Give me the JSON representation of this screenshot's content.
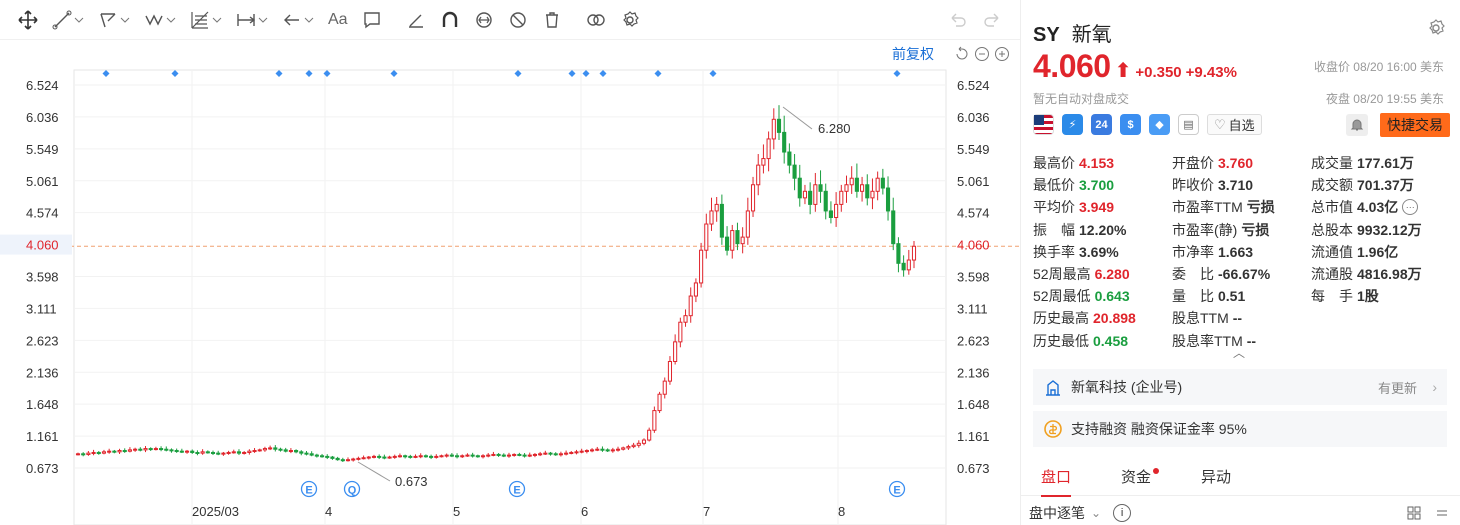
{
  "toolbar": {
    "text_tool": "Aa"
  },
  "chart": {
    "fuquan_label": "前复权",
    "price_axis_left": [
      "6.524",
      "6.036",
      "5.549",
      "5.061",
      "4.574",
      "4.060",
      "3.598",
      "3.111",
      "2.623",
      "2.136",
      "1.648",
      "1.161",
      "0.673"
    ],
    "price_axis_right": [
      "6.524",
      "6.036",
      "5.549",
      "5.061",
      "4.574",
      "4.060",
      "3.598",
      "3.111",
      "2.623",
      "2.136",
      "1.648",
      "1.161",
      "0.673"
    ],
    "current_price": "4.060",
    "x_labels": [
      "2025/03",
      "4",
      "5",
      "6",
      "7",
      "8"
    ],
    "high_marker": "6.280",
    "low_marker": "0.673",
    "event_badges": [
      "E",
      "Q",
      "E",
      "E"
    ]
  },
  "chart_data": {
    "type": "candlestick",
    "ymin": 0.673,
    "ymax": 6.524,
    "current": 4.06,
    "high_label": 6.28,
    "low_label": 0.673,
    "x_ticks": [
      "2025/03",
      "4",
      "5",
      "6",
      "7",
      "8"
    ],
    "closes": [
      0.89,
      0.88,
      0.9,
      0.91,
      0.9,
      0.92,
      0.93,
      0.92,
      0.94,
      0.93,
      0.95,
      0.96,
      0.95,
      0.97,
      0.96,
      0.97,
      0.96,
      0.95,
      0.94,
      0.93,
      0.92,
      0.93,
      0.91,
      0.9,
      0.92,
      0.91,
      0.9,
      0.89,
      0.9,
      0.91,
      0.92,
      0.9,
      0.91,
      0.93,
      0.94,
      0.95,
      0.97,
      0.98,
      0.96,
      0.95,
      0.93,
      0.94,
      0.92,
      0.9,
      0.89,
      0.87,
      0.86,
      0.85,
      0.84,
      0.82,
      0.8,
      0.79,
      0.8,
      0.81,
      0.82,
      0.83,
      0.84,
      0.85,
      0.84,
      0.83,
      0.84,
      0.85,
      0.86,
      0.85,
      0.84,
      0.85,
      0.86,
      0.85,
      0.84,
      0.85,
      0.86,
      0.87,
      0.86,
      0.85,
      0.86,
      0.87,
      0.86,
      0.85,
      0.86,
      0.87,
      0.88,
      0.87,
      0.86,
      0.87,
      0.88,
      0.87,
      0.86,
      0.87,
      0.88,
      0.89,
      0.9,
      0.89,
      0.88,
      0.89,
      0.9,
      0.91,
      0.92,
      0.93,
      0.94,
      0.95,
      0.96,
      0.95,
      0.94,
      0.95,
      0.96,
      0.98,
      1.0,
      1.02,
      1.05,
      1.1,
      1.25,
      1.55,
      1.8,
      2.0,
      2.3,
      2.6,
      2.9,
      3.0,
      3.3,
      3.5,
      4.0,
      4.4,
      4.6,
      4.7,
      4.2,
      4.0,
      4.3,
      4.1,
      4.2,
      4.6,
      5.0,
      5.3,
      5.4,
      5.7,
      6.0,
      5.8,
      5.5,
      5.3,
      5.1,
      4.8,
      4.9,
      4.7,
      5.0,
      4.9,
      4.6,
      4.5,
      4.7,
      4.9,
      5.0,
      5.1,
      4.9,
      5.0,
      4.8,
      4.9,
      5.1,
      4.95,
      4.6,
      4.1,
      3.8,
      3.7,
      3.85,
      4.06
    ]
  },
  "quote": {
    "ticker": "SY",
    "name": "新氧",
    "price": "4.060",
    "change": "+0.350",
    "change_pct": "+9.43%",
    "close_info": "收盘价 08/20 16:00 美东",
    "no_auction": "暂无自动对盘成交",
    "night_info": "夜盘 08/20 19:55 美东",
    "badge_24": "24",
    "watch_label": "自选",
    "quick_trade": "快捷交易",
    "expand": "^"
  },
  "stats": [
    [
      {
        "label": "最高价",
        "value": "4.153",
        "color": "red"
      },
      {
        "label": "开盘价",
        "value": "3.760",
        "color": "red"
      },
      {
        "label": "成交量",
        "value": "177.61万",
        "color": ""
      }
    ],
    [
      {
        "label": "最低价",
        "value": "3.700",
        "color": "green"
      },
      {
        "label": "昨收价",
        "value": "3.710",
        "color": ""
      },
      {
        "label": "成交额",
        "value": "701.37万",
        "color": ""
      }
    ],
    [
      {
        "label": "平均价",
        "value": "3.949",
        "color": "red"
      },
      {
        "label": "市盈率TTM",
        "value": "亏损",
        "color": ""
      },
      {
        "label": "总市值",
        "value": "4.03亿",
        "color": ""
      }
    ],
    [
      {
        "label": "振　幅",
        "value": "12.20%",
        "color": ""
      },
      {
        "label": "市盈率(静)",
        "value": "亏损",
        "color": ""
      },
      {
        "label": "总股本",
        "value": "9932.12万",
        "color": ""
      }
    ],
    [
      {
        "label": "换手率",
        "value": "3.69%",
        "color": ""
      },
      {
        "label": "市净率",
        "value": "1.663",
        "color": ""
      },
      {
        "label": "流通值",
        "value": "1.96亿",
        "color": ""
      }
    ],
    [
      {
        "label": "52周最高",
        "value": "6.280",
        "color": "red"
      },
      {
        "label": "委　比",
        "value": "-66.67%",
        "color": ""
      },
      {
        "label": "流通股",
        "value": "4816.98万",
        "color": ""
      }
    ],
    [
      {
        "label": "52周最低",
        "value": "0.643",
        "color": "green"
      },
      {
        "label": "量　比",
        "value": "0.51",
        "color": ""
      },
      {
        "label": "每　手",
        "value": "1股",
        "color": ""
      }
    ],
    [
      {
        "label": "历史最高",
        "value": "20.898",
        "color": "red"
      },
      {
        "label": "股息TTM",
        "value": "--",
        "color": ""
      },
      {
        "label": "",
        "value": "",
        "color": ""
      }
    ],
    [
      {
        "label": "历史最低",
        "value": "0.458",
        "color": "green"
      },
      {
        "label": "股息率TTM",
        "value": "--",
        "color": ""
      },
      {
        "label": "",
        "value": "",
        "color": ""
      }
    ]
  ],
  "cards": {
    "company": "新氧科技 (企业号)",
    "more": "有更新",
    "margin": "支持融资 融资保证金率 95%"
  },
  "tabs": [
    "盘口",
    "资金",
    "异动"
  ],
  "tick": {
    "label": "盘中逐笔"
  },
  "colors": {
    "up": "#e0252c",
    "down": "#1a9e3f",
    "accent": "#1a6fd6",
    "trade": "#ff6a1a"
  }
}
